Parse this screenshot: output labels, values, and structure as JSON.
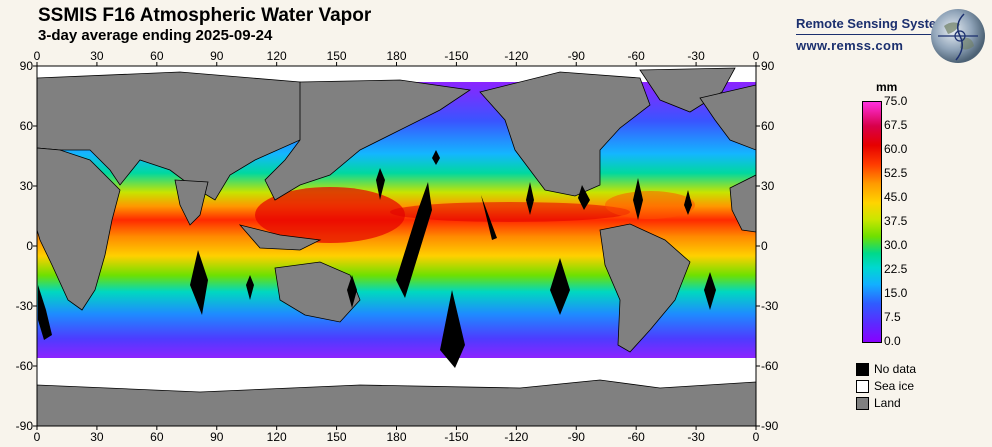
{
  "header": {
    "title": "SSMIS F16 Atmospheric Water Vapor",
    "subtitle": "3-day average ending 2025-09-24"
  },
  "brand": {
    "name": "Remote Sensing Systems",
    "url": "www.remss.com"
  },
  "map": {
    "lon_ticks": [
      "0",
      "30",
      "60",
      "90",
      "120",
      "150",
      "180",
      "-150",
      "-120",
      "-90",
      "-60",
      "-30",
      "0"
    ],
    "lat_ticks": [
      "90",
      "60",
      "30",
      "0",
      "-30",
      "-60",
      "-90"
    ],
    "land_color": "#808080",
    "ice_color": "#ffffff",
    "nodata_color": "#000000"
  },
  "colorbar": {
    "unit": "mm",
    "labels": [
      "75.0",
      "67.5",
      "60.0",
      "52.5",
      "45.0",
      "37.5",
      "30.0",
      "22.5",
      "15.0",
      "7.5",
      "0.0"
    ],
    "range": [
      0,
      75
    ]
  },
  "legend": [
    {
      "label": "No data",
      "color": "#000000"
    },
    {
      "label": "Sea ice",
      "color": "#ffffff"
    },
    {
      "label": "Land",
      "color": "#808080"
    }
  ]
}
